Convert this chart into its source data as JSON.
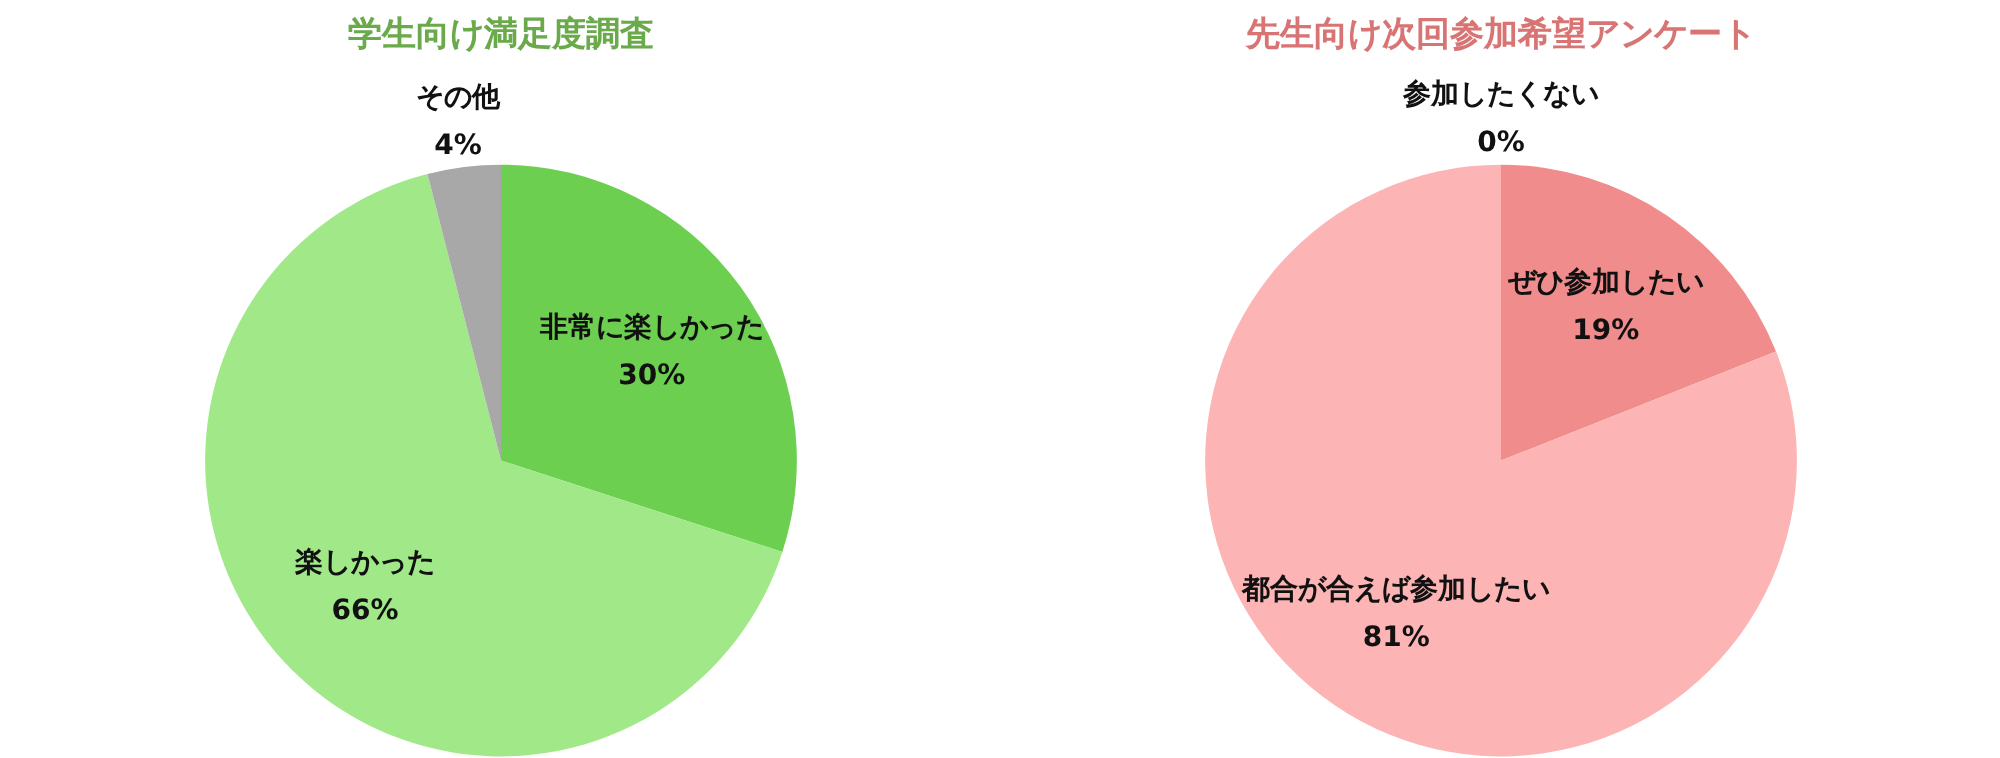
{
  "chart_data": [
    {
      "type": "pie",
      "title": "学生向け満足度調査",
      "categories": [
        "非常に楽しかった",
        "楽しかった",
        "その他"
      ],
      "values": [
        30,
        66,
        4
      ],
      "colors": [
        "#6dcf50",
        "#a0e888",
        "#a8a8a8"
      ],
      "value_labels": [
        "30%",
        "66%",
        "4%"
      ]
    },
    {
      "type": "pie",
      "title": "先生向け次回参加希望アンケート",
      "categories": [
        "ぜひ参加したい",
        "都合が合えば参加したい",
        "参加したくない"
      ],
      "values": [
        19,
        81,
        0
      ],
      "colors": [
        "#f08c8c",
        "#fcb4b4",
        "#e06060"
      ],
      "value_labels": [
        "19%",
        "81%",
        "0%"
      ]
    }
  ]
}
